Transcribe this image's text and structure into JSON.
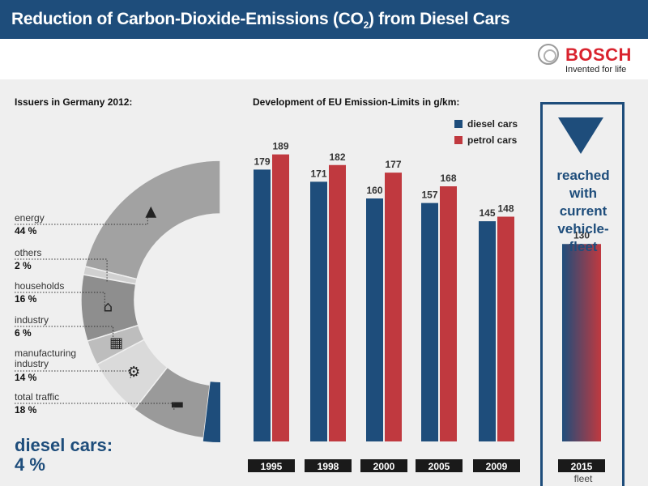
{
  "header": {
    "title_pre": "Reduction of Carbon-Dioxide-Emissions (CO",
    "title_sub": "2",
    "title_post": ") from Diesel Cars"
  },
  "logo": {
    "brand": "BOSCH",
    "tagline": "Invented for life"
  },
  "colors": {
    "diesel": "#1e4d7b",
    "petrol": "#c0393f",
    "banner": "#1e4d7b"
  },
  "issuers": {
    "title": "Issuers in Germany 2012:",
    "items": [
      {
        "name": "energy",
        "value": "44 %",
        "icon": "factory-icon"
      },
      {
        "name": "others",
        "value": "2 %",
        "icon": ""
      },
      {
        "name": "households",
        "value": "16 %",
        "icon": "house-icon"
      },
      {
        "name": "industry",
        "value": "6 %",
        "icon": "industry-icon"
      },
      {
        "name": "manufacturing industry",
        "value": "14 %",
        "icon": "gears-icon"
      },
      {
        "name": "total traffic",
        "value": "18 %",
        "icon": "car-icon"
      }
    ],
    "highlight": {
      "label": "diesel cars:",
      "value": "4 %"
    }
  },
  "emission_chart_title": "Development of EU Emission-Limits in g/km:",
  "fleet": {
    "text": "reached with current vehicle-fleet",
    "year": "2015",
    "value": 130,
    "sub": "fleet"
  },
  "chart_data": [
    {
      "type": "donut",
      "title": "Issuers in Germany 2012:",
      "categories": [
        "energy",
        "others",
        "households",
        "industry",
        "manufacturing industry",
        "total traffic"
      ],
      "values": [
        44,
        2,
        16,
        6,
        14,
        18
      ],
      "highlight": {
        "name": "diesel cars",
        "value": 4
      }
    },
    {
      "type": "bar",
      "title": "Development of EU Emission-Limits in g/km:",
      "categories": [
        "1995",
        "1998",
        "2000",
        "2005",
        "2009"
      ],
      "series": [
        {
          "name": "diesel cars",
          "values": [
            179,
            171,
            160,
            157,
            145
          ]
        },
        {
          "name": "petrol cars",
          "values": [
            189,
            182,
            177,
            168,
            148
          ]
        }
      ],
      "ylim": [
        0,
        200
      ],
      "grid": false,
      "legend": "top-right"
    },
    {
      "type": "bar",
      "categories": [
        "2015"
      ],
      "values": [
        130
      ],
      "ylim": [
        0,
        200
      ]
    }
  ]
}
